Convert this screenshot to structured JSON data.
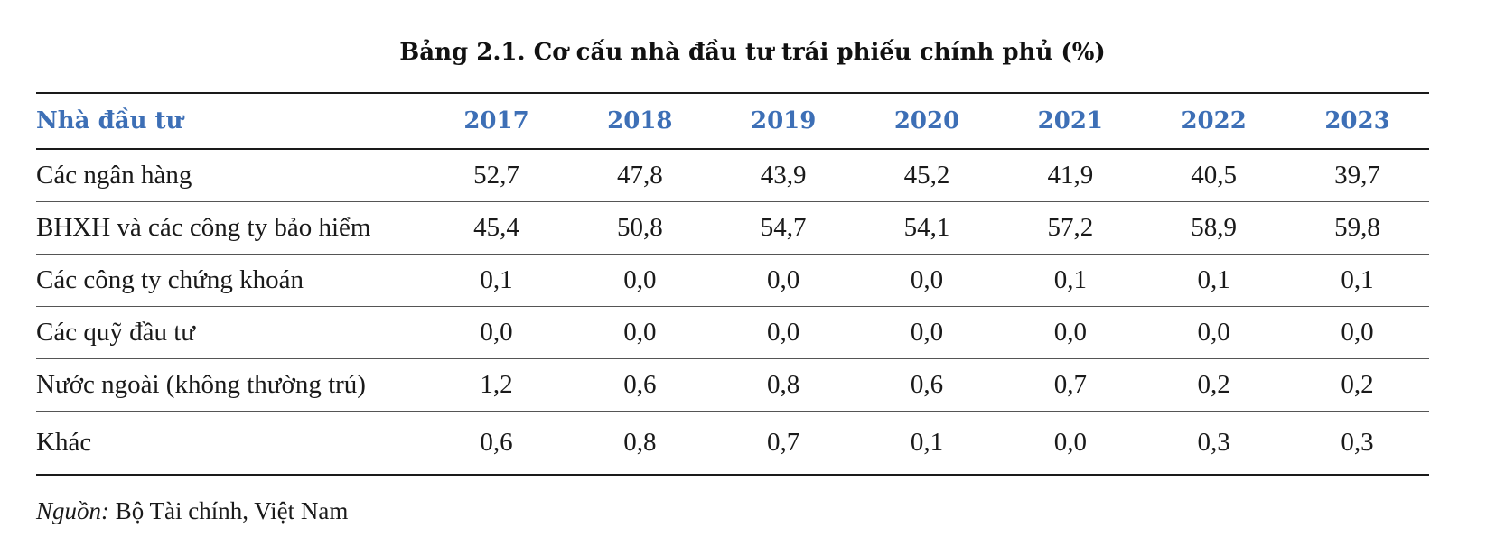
{
  "title": "Bảng 2.1. Cơ cấu nhà đầu tư trái phiếu chính phủ (%)",
  "table": {
    "header": {
      "name": "Nhà đầu tư",
      "years": [
        "2017",
        "2018",
        "2019",
        "2020",
        "2021",
        "2022",
        "2023"
      ]
    },
    "rows": [
      {
        "name": "Các ngân hàng",
        "values": [
          "52,7",
          "47,8",
          "43,9",
          "45,2",
          "41,9",
          "40,5",
          "39,7"
        ]
      },
      {
        "name": "BHXH và các công ty bảo hiểm",
        "values": [
          "45,4",
          "50,8",
          "54,7",
          "54,1",
          "57,2",
          "58,9",
          "59,8"
        ]
      },
      {
        "name": "Các công ty chứng khoán",
        "values": [
          "0,1",
          "0,0",
          "0,0",
          "0,0",
          "0,1",
          "0,1",
          "0,1"
        ]
      },
      {
        "name": "Các quỹ đầu tư",
        "values": [
          "0,0",
          "0,0",
          "0,0",
          "0,0",
          "0,0",
          "0,0",
          "0,0"
        ]
      },
      {
        "name": "Nước ngoài (không thường trú)",
        "values": [
          "1,2",
          "0,6",
          "0,8",
          "0,6",
          "0,7",
          "0,2",
          "0,2"
        ]
      },
      {
        "name": "Khác",
        "values": [
          "0,6",
          "0,8",
          "0,7",
          "0,1",
          "0,0",
          "0,3",
          "0,3"
        ]
      }
    ]
  },
  "source": {
    "label": "Nguồn:",
    "text": " Bộ Tài chính, Việt Nam"
  },
  "colors": {
    "header_text": "#3d6fb6",
    "body_text": "#1a1a1a",
    "rule": "#1a1a1a"
  }
}
